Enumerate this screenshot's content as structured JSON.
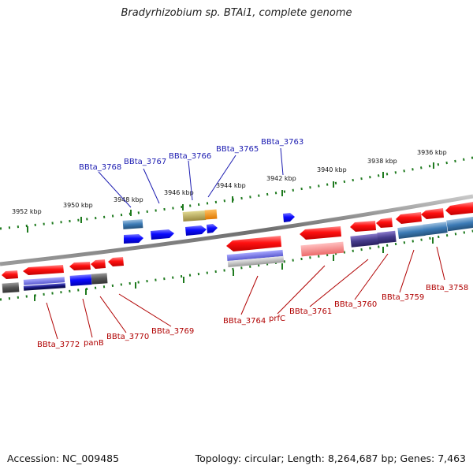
{
  "title": "Bradyrhizobium sp. BTAi1, complete genome",
  "footer": {
    "accession": "Accession: NC_009485",
    "summary": "Topology: circular; Length: 8,264,687 bp; Genes: 7,463"
  },
  "colors": {
    "backbone": "#7a7a7a",
    "tick": "#1e7a1e",
    "forward_gene": "#ff1010",
    "reverse_gene": "#1010ff",
    "top_label": "#1a1ab0",
    "bottom_label": "#b00000"
  },
  "scale_ticks": [
    "3952 kbp",
    "3950 kbp",
    "3948 kbp",
    "3946 kbp",
    "3944 kbp",
    "3942 kbp",
    "3940 kbp",
    "3938 kbp",
    "3936 kbp"
  ],
  "top_genes": [
    "BBta_3768",
    "BBta_3767",
    "BBta_3766",
    "BBta_3765",
    "BBta_3763"
  ],
  "bottom_genes": [
    "BBta_3772",
    "panB",
    "BBta_3770",
    "BBta_3769",
    "BBta_3764",
    "prfC",
    "BBta_3761",
    "BBta_3760",
    "BBta_3759",
    "BBta_3758"
  ]
}
